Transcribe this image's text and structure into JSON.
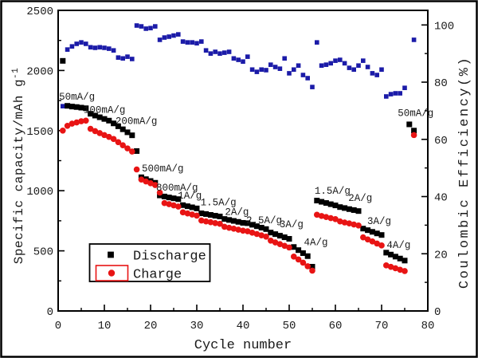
{
  "window": {
    "background": "#ffffff",
    "border_color": "#000000"
  },
  "chart_data": {
    "type": "scatter",
    "title": "",
    "xlabel": "Cycle number",
    "ylabel_left": "Specific capacity/mAh g",
    "ylabel_left_superscript": "-1",
    "ylabel_right": "Coulombic Efficiency(%)",
    "x_range": [
      0,
      80
    ],
    "y_left_range": [
      0,
      2500
    ],
    "y_right_range": [
      0,
      105.1
    ],
    "grid": false,
    "legend_position": "lower-left",
    "x_major_ticks": [
      0,
      10,
      20,
      30,
      40,
      50,
      60,
      70,
      80
    ],
    "x_minor_ticks": [
      5,
      15,
      25,
      35,
      45,
      55,
      65,
      75
    ],
    "y_left_major_ticks": [
      0,
      500,
      1000,
      1500,
      2000,
      2500
    ],
    "y_left_minor_ticks": [
      250,
      750,
      1250,
      1750,
      2250
    ],
    "y_right_major_ticks": [
      0,
      20,
      40,
      60,
      80,
      100
    ],
    "y_right_minor_ticks": [
      10,
      30,
      50,
      70,
      90
    ],
    "cycles": [
      1,
      2,
      3,
      4,
      5,
      6,
      7,
      8,
      9,
      10,
      11,
      12,
      13,
      14,
      15,
      16,
      17,
      18,
      19,
      20,
      21,
      22,
      23,
      24,
      25,
      26,
      27,
      28,
      29,
      30,
      31,
      32,
      33,
      34,
      35,
      36,
      37,
      38,
      39,
      40,
      41,
      42,
      43,
      44,
      45,
      46,
      47,
      48,
      49,
      50,
      51,
      52,
      53,
      54,
      55,
      56,
      57,
      58,
      59,
      60,
      61,
      62,
      63,
      64,
      65,
      66,
      67,
      68,
      69,
      70,
      71,
      72,
      73,
      74,
      75,
      76,
      77
    ],
    "series": [
      {
        "name": "Discharge",
        "marker": "square",
        "color": "#000000",
        "axis": "left",
        "values": [
          2080,
          1706,
          1700,
          1696,
          1691,
          1686,
          1640,
          1625,
          1611,
          1597,
          1583,
          1560,
          1536,
          1511,
          1486,
          1461,
          1330,
          1112,
          1096,
          1081,
          1066,
          961,
          952,
          944,
          937,
          930,
          880,
          871,
          862,
          853,
          812,
          806,
          799,
          792,
          786,
          765,
          757,
          749,
          741,
          733,
          730,
          717,
          705,
          693,
          681,
          652,
          639,
          626,
          613,
          600,
          532,
          506,
          481,
          456,
          368,
          918,
          908,
          898,
          888,
          878,
          864,
          856,
          847,
          839,
          831,
          685,
          672,
          658,
          645,
          632,
          485,
          469,
          452,
          436,
          419,
          1552,
          1500
        ]
      },
      {
        "name": "Charge",
        "marker": "circle",
        "color": "#e81414",
        "axis": "left",
        "values": [
          1500,
          1540,
          1558,
          1568,
          1578,
          1583,
          1515,
          1496,
          1479,
          1463,
          1448,
          1430,
          1404,
          1378,
          1352,
          1326,
          1177,
          1093,
          1077,
          1062,
          1047,
          984,
          897,
          888,
          878,
          868,
          820,
          811,
          802,
          793,
          752,
          745,
          738,
          731,
          725,
          700,
          692,
          684,
          676,
          668,
          663,
          651,
          640,
          629,
          618,
          585,
          570,
          556,
          542,
          528,
          452,
          428,
          402,
          372,
          335,
          800,
          790,
          781,
          772,
          764,
          745,
          736,
          728,
          719,
          711,
          612,
          595,
          578,
          561,
          545,
          379,
          367,
          355,
          343,
          332,
          null,
          1463
        ]
      },
      {
        "name": "Coulombic Efficiency",
        "marker": "square",
        "color": "#1b1ba8",
        "axis": "right",
        "values": [
          71.6,
          91.4,
          92.5,
          93.4,
          93.9,
          93.4,
          92.2,
          92.0,
          92.2,
          92.0,
          91.7,
          91.1,
          88.6,
          88.3,
          88.9,
          88.1,
          99.8,
          99.5,
          98.7,
          98.9,
          99.5,
          94.8,
          95.6,
          95.9,
          96.3,
          96.7,
          94.2,
          93.9,
          93.9,
          93.6,
          94.2,
          91.1,
          90.0,
          90.6,
          90.0,
          90.3,
          90.6,
          88.3,
          87.8,
          87.2,
          88.9,
          84.4,
          83.6,
          84.4,
          84.2,
          86.1,
          85.3,
          84.7,
          88.3,
          83.1,
          84.4,
          85.8,
          82.5,
          81.4,
          78.3,
          93.9,
          85.8,
          86.1,
          86.6,
          87.5,
          87.8,
          86.6,
          85.0,
          84.4,
          85.8,
          87.5,
          85.3,
          83.1,
          82.5,
          84.4,
          75.0,
          75.8,
          76.1,
          76.1,
          78.0,
          null,
          94.8
        ]
      }
    ],
    "annotations": [
      {
        "text": "50mA/g",
        "x": 0.2,
        "y": 1758
      },
      {
        "text": "100mA/g",
        "x": 5.5,
        "y": 1648
      },
      {
        "text": "200mA/g",
        "x": 12.4,
        "y": 1556
      },
      {
        "text": "500mA/g",
        "x": 18.1,
        "y": 1160
      },
      {
        "text": "800mA/g",
        "x": 21.2,
        "y": 1000
      },
      {
        "text": "1A/g",
        "x": 25.9,
        "y": 936
      },
      {
        "text": "1.5A/g",
        "x": 30.8,
        "y": 880
      },
      {
        "text": "2A/g",
        "x": 36.1,
        "y": 800
      },
      {
        "text": "2.5A/g",
        "x": 40.7,
        "y": 728
      },
      {
        "text": "3A/g",
        "x": 47.9,
        "y": 695
      },
      {
        "text": "4A/g",
        "x": 53.2,
        "y": 548
      },
      {
        "text": "1.5A/g",
        "x": 55.5,
        "y": 976
      },
      {
        "text": "2A/g",
        "x": 62.8,
        "y": 916
      },
      {
        "text": "3A/g",
        "x": 66.9,
        "y": 722
      },
      {
        "text": "4A/g",
        "x": 71.1,
        "y": 524
      },
      {
        "text": "50mA/g",
        "x": 73.5,
        "y": 1620
      }
    ]
  },
  "legend": {
    "items": [
      {
        "label": "Discharge",
        "marker": "square",
        "color": "#000000",
        "symbol_boxed": false
      },
      {
        "label": "Charge",
        "marker": "circle",
        "color": "#e81414",
        "symbol_boxed": true
      }
    ]
  }
}
